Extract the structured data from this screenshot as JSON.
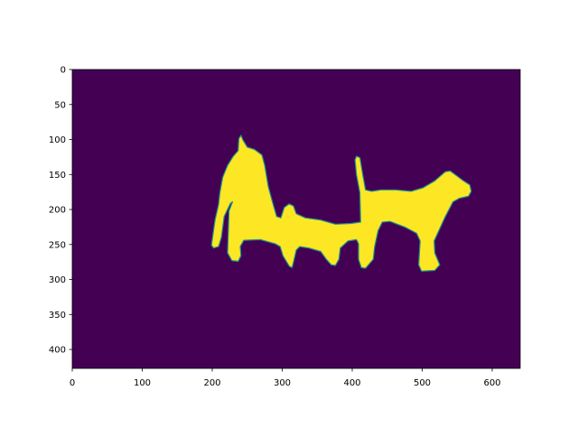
{
  "chart_data": {
    "type": "heatmap",
    "title": "",
    "xlabel": "",
    "ylabel": "",
    "xlim": [
      0,
      640
    ],
    "ylim": [
      427,
      0
    ],
    "y_inverted": true,
    "grid": false,
    "xticks": [
      0,
      100,
      200,
      300,
      400,
      500,
      600
    ],
    "yticks": [
      0,
      50,
      100,
      150,
      200,
      250,
      300,
      350,
      400
    ],
    "colors": {
      "background": "#440154",
      "mask": "#fde725",
      "edge": "#21918c"
    },
    "values": [
      0,
      1
    ],
    "mask_outline": [
      [
        199,
        251
      ],
      [
        202,
        255
      ],
      [
        209,
        253
      ],
      [
        213,
        240
      ],
      [
        217,
        210
      ],
      [
        226,
        191
      ],
      [
        229,
        189
      ],
      [
        224,
        202
      ],
      [
        222,
        262
      ],
      [
        228,
        273
      ],
      [
        237,
        274
      ],
      [
        241,
        266
      ],
      [
        240,
        253
      ],
      [
        245,
        244
      ],
      [
        269,
        243
      ],
      [
        290,
        249
      ],
      [
        297,
        253
      ],
      [
        301,
        266
      ],
      [
        310,
        281
      ],
      [
        314,
        283
      ],
      [
        317,
        271
      ],
      [
        320,
        258
      ],
      [
        325,
        253
      ],
      [
        338,
        255
      ],
      [
        355,
        260
      ],
      [
        363,
        271
      ],
      [
        370,
        279
      ],
      [
        376,
        280
      ],
      [
        381,
        271
      ],
      [
        383,
        255
      ],
      [
        394,
        245
      ],
      [
        406,
        243
      ],
      [
        409,
        249
      ],
      [
        409,
        271
      ],
      [
        413,
        283
      ],
      [
        419,
        284
      ],
      [
        430,
        271
      ],
      [
        432,
        253
      ],
      [
        437,
        230
      ],
      [
        443,
        218
      ],
      [
        454,
        217
      ],
      [
        475,
        225
      ],
      [
        492,
        234
      ],
      [
        497,
        245
      ],
      [
        495,
        279
      ],
      [
        499,
        288
      ],
      [
        518,
        287
      ],
      [
        525,
        279
      ],
      [
        518,
        262
      ],
      [
        517,
        245
      ],
      [
        523,
        232
      ],
      [
        533,
        210
      ],
      [
        544,
        189
      ],
      [
        553,
        184
      ],
      [
        566,
        181
      ],
      [
        570,
        174
      ],
      [
        568,
        165
      ],
      [
        559,
        159
      ],
      [
        540,
        145
      ],
      [
        533,
        146
      ],
      [
        518,
        159
      ],
      [
        501,
        169
      ],
      [
        484,
        174
      ],
      [
        462,
        172
      ],
      [
        441,
        172
      ],
      [
        428,
        174
      ],
      [
        419,
        172
      ],
      [
        415,
        150
      ],
      [
        411,
        126
      ],
      [
        406,
        124
      ],
      [
        404,
        129
      ],
      [
        406,
        150
      ],
      [
        411,
        176
      ],
      [
        412,
        218
      ],
      [
        398,
        220
      ],
      [
        376,
        221
      ],
      [
        355,
        215
      ],
      [
        333,
        212
      ],
      [
        320,
        206
      ],
      [
        316,
        195
      ],
      [
        310,
        192
      ],
      [
        303,
        197
      ],
      [
        298,
        212
      ],
      [
        292,
        210
      ],
      [
        286,
        189
      ],
      [
        280,
        167
      ],
      [
        275,
        137
      ],
      [
        271,
        122
      ],
      [
        260,
        114
      ],
      [
        250,
        111
      ],
      [
        244,
        101
      ],
      [
        241,
        94
      ],
      [
        238,
        99
      ],
      [
        237,
        116
      ],
      [
        230,
        124
      ],
      [
        222,
        137
      ],
      [
        215,
        154
      ],
      [
        211,
        176
      ],
      [
        209,
        193
      ],
      [
        204,
        215
      ],
      [
        201,
        236
      ]
    ]
  }
}
